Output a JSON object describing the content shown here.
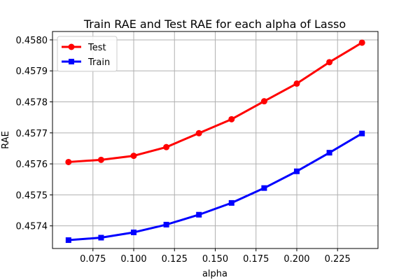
{
  "chart_data": {
    "type": "line",
    "title": "Train RAE and Test RAE for each alpha of Lasso",
    "xlabel": "alpha",
    "ylabel": "RAE",
    "x": [
      0.06,
      0.08,
      0.1,
      0.12,
      0.14,
      0.16,
      0.18,
      0.2,
      0.22,
      0.24
    ],
    "xlim": [
      0.0502,
      0.2498
    ],
    "ylim": [
      0.457327,
      0.458027
    ],
    "xticks": [
      0.075,
      0.1,
      0.125,
      0.15,
      0.175,
      0.2,
      0.225
    ],
    "xtick_labels": [
      "0.075",
      "0.100",
      "0.125",
      "0.150",
      "0.175",
      "0.200",
      "0.225"
    ],
    "yticks": [
      0.4574,
      0.4575,
      0.4576,
      0.4577,
      0.4578,
      0.4579,
      0.458
    ],
    "ytick_labels": [
      "0.4574",
      "0.4575",
      "0.4576",
      "0.4577",
      "0.4578",
      "0.4579",
      "0.4580"
    ],
    "grid": true,
    "legend_position": "top-left",
    "series": [
      {
        "name": "Test",
        "color": "#ff0000",
        "marker": "circle",
        "values": [
          0.457606,
          0.457613,
          0.457626,
          0.457654,
          0.457699,
          0.457744,
          0.457802,
          0.457859,
          0.457928,
          0.457991
        ]
      },
      {
        "name": "Train",
        "color": "#0000ff",
        "marker": "square",
        "values": [
          0.457354,
          0.457362,
          0.457379,
          0.457404,
          0.457436,
          0.457474,
          0.457522,
          0.457576,
          0.457636,
          0.457698
        ]
      }
    ]
  }
}
